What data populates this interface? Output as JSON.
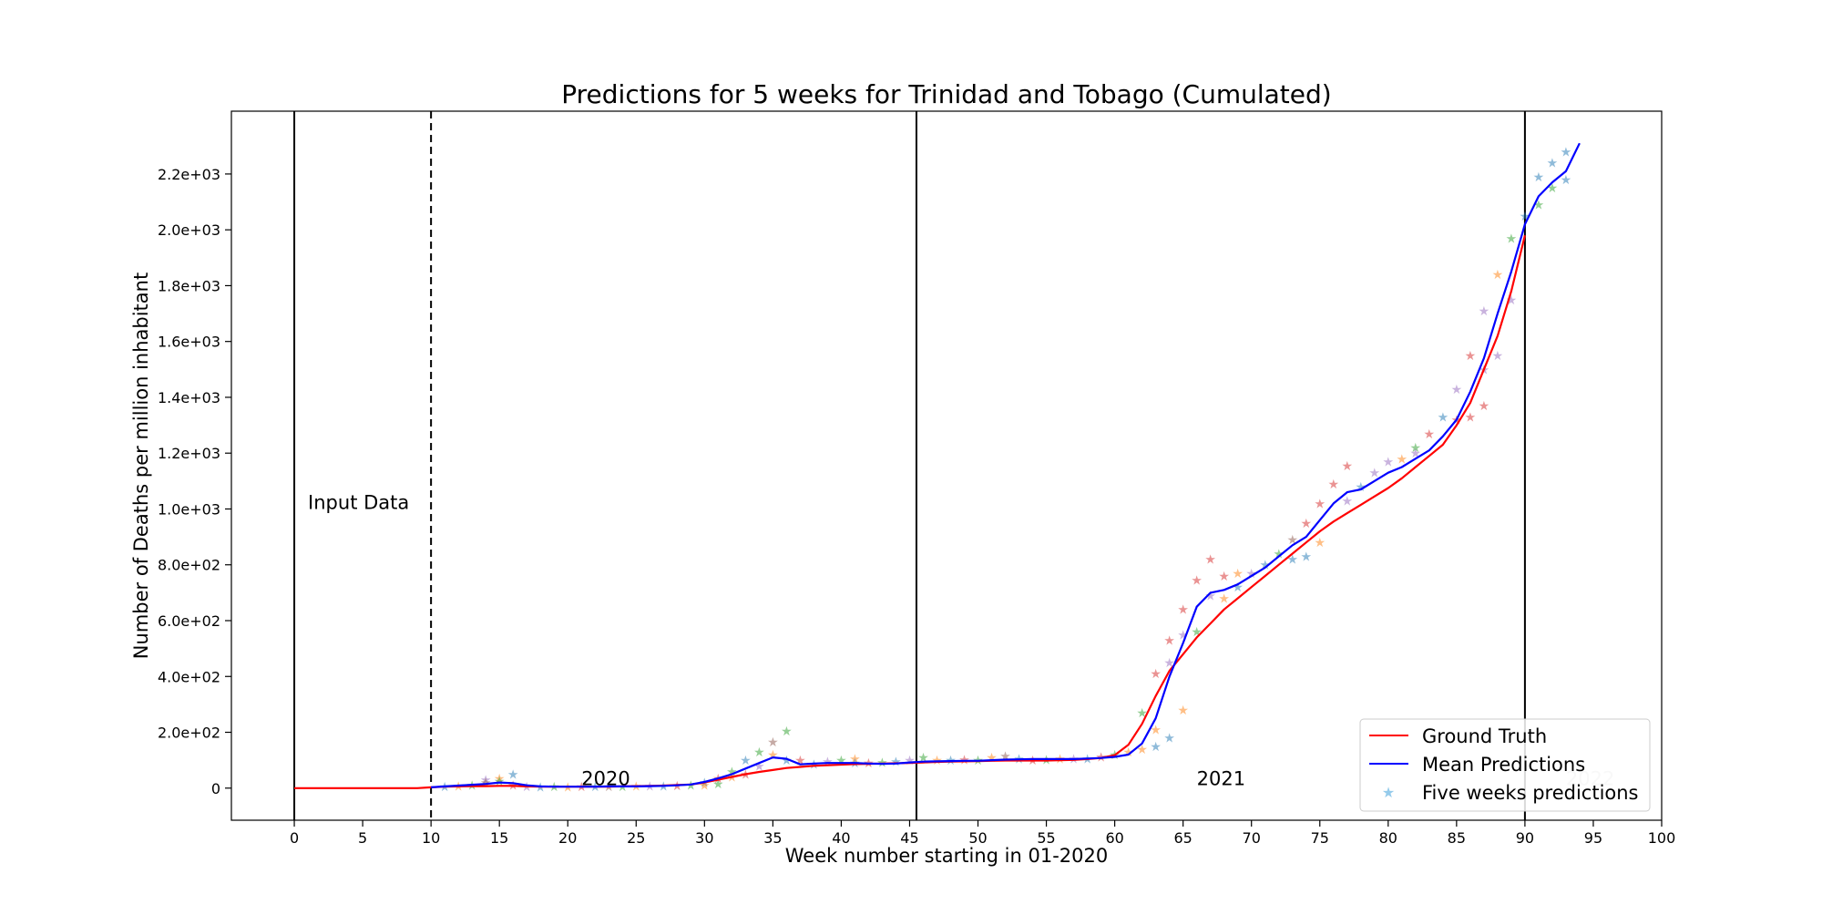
{
  "chart_data": {
    "type": "line",
    "title": "Predictions for 5 weeks for Trinidad and Tobago (Cumulated)",
    "xlabel": "Week number starting in 01-2020",
    "ylabel": "Number of Deaths per million inhabitant",
    "xlim": [
      -4.6,
      100
    ],
    "ylim": [
      -115,
      2425
    ],
    "x_ticks": [
      0,
      5,
      10,
      15,
      20,
      25,
      30,
      35,
      40,
      45,
      50,
      55,
      60,
      65,
      70,
      75,
      80,
      85,
      90,
      95,
      100
    ],
    "x_tick_labels": [
      "0",
      "5",
      "10",
      "15",
      "20",
      "25",
      "30",
      "35",
      "40",
      "45",
      "50",
      "55",
      "60",
      "65",
      "70",
      "75",
      "80",
      "85",
      "90",
      "95",
      "100"
    ],
    "y_ticks": [
      0,
      200,
      400,
      600,
      800,
      1000,
      1200,
      1400,
      1600,
      1800,
      2000,
      2200
    ],
    "y_tick_labels": [
      "0",
      "2.0e+02",
      "4.0e+02",
      "6.0e+02",
      "8.0e+02",
      "1.0e+03",
      "1.2e+03",
      "1.4e+03",
      "1.6e+03",
      "1.8e+03",
      "2.0e+03",
      "2.2e+03"
    ],
    "grid": false,
    "legend_position": "lower-right",
    "vertical_lines": [
      {
        "x": 0,
        "style": "solid",
        "color": "#000000"
      },
      {
        "x": 10,
        "style": "dashed",
        "color": "#000000"
      },
      {
        "x": 45.5,
        "style": "solid",
        "color": "#000000"
      },
      {
        "x": 90,
        "style": "solid",
        "color": "#000000"
      }
    ],
    "annotations": [
      {
        "text": "Input Data",
        "x": 1,
        "y": 1000,
        "color": "#000000"
      },
      {
        "text": "2020",
        "x": 21,
        "y": 10,
        "color": "#000000"
      },
      {
        "text": "2021",
        "x": 66,
        "y": 10,
        "color": "#000000"
      },
      {
        "text": "2022",
        "x": 93,
        "y": 10,
        "color": "#cccccc"
      }
    ],
    "series": [
      {
        "name": "Ground Truth",
        "kind": "line",
        "color": "#ff0000",
        "x": [
          0,
          2,
          4,
          6,
          8,
          9,
          10,
          11,
          12,
          13,
          14,
          15,
          16,
          17,
          18,
          19,
          20,
          21,
          22,
          23,
          24,
          25,
          26,
          27,
          28,
          29,
          30,
          31,
          32,
          33,
          34,
          35,
          36,
          37,
          38,
          39,
          40,
          41,
          42,
          43,
          44,
          45,
          46,
          47,
          48,
          49,
          50,
          51,
          52,
          53,
          54,
          55,
          56,
          57,
          58,
          59,
          60,
          61,
          62,
          63,
          64,
          65,
          66,
          67,
          68,
          69,
          70,
          71,
          72,
          73,
          74,
          75,
          76,
          77,
          78,
          79,
          80,
          81,
          82,
          83,
          84,
          85,
          86,
          87,
          88,
          89,
          90
        ],
        "values": [
          0,
          0,
          0,
          0,
          0,
          0,
          3,
          5,
          6,
          7,
          7,
          8,
          8,
          6,
          5,
          5,
          5,
          5,
          5,
          5,
          6,
          7,
          8,
          9,
          11,
          13,
          20,
          30,
          40,
          50,
          58,
          65,
          72,
          76,
          80,
          82,
          84,
          86,
          87,
          88,
          89,
          90,
          92,
          94,
          95,
          96,
          97,
          98,
          99,
          99,
          99,
          99,
          100,
          101,
          104,
          108,
          118,
          155,
          230,
          330,
          420,
          480,
          540,
          590,
          640,
          680,
          720,
          760,
          800,
          840,
          880,
          920,
          955,
          985,
          1015,
          1045,
          1075,
          1110,
          1150,
          1190,
          1230,
          1300,
          1380,
          1500,
          1620,
          1780,
          1980
        ]
      },
      {
        "name": "Mean Predictions",
        "kind": "line",
        "color": "#0000ff",
        "x": [
          10,
          11,
          12,
          13,
          14,
          15,
          16,
          17,
          18,
          19,
          20,
          21,
          22,
          23,
          24,
          25,
          26,
          27,
          28,
          29,
          30,
          31,
          32,
          33,
          34,
          35,
          36,
          37,
          38,
          39,
          40,
          41,
          42,
          43,
          44,
          45,
          46,
          47,
          48,
          49,
          50,
          51,
          52,
          53,
          54,
          55,
          56,
          57,
          58,
          59,
          60,
          61,
          62,
          63,
          64,
          65,
          66,
          67,
          68,
          69,
          70,
          71,
          72,
          73,
          74,
          75,
          76,
          77,
          78,
          79,
          80,
          81,
          82,
          83,
          84,
          85,
          86,
          87,
          88,
          89,
          90,
          91,
          92,
          93,
          94
        ],
        "values": [
          3,
          6,
          9,
          12,
          15,
          20,
          18,
          10,
          6,
          5,
          5,
          5,
          5,
          6,
          6,
          6,
          7,
          8,
          10,
          13,
          22,
          35,
          50,
          70,
          90,
          110,
          105,
          85,
          88,
          90,
          90,
          90,
          88,
          87,
          88,
          92,
          95,
          96,
          97,
          98,
          98,
          100,
          102,
          103,
          104,
          104,
          104,
          104,
          106,
          108,
          112,
          120,
          160,
          250,
          400,
          520,
          650,
          700,
          710,
          730,
          760,
          790,
          830,
          870,
          900,
          960,
          1020,
          1060,
          1070,
          1100,
          1130,
          1150,
          1180,
          1210,
          1260,
          1320,
          1420,
          1540,
          1700,
          1850,
          2020,
          2120,
          2170,
          2210,
          2310
        ]
      },
      {
        "name": "Five weeks predictions",
        "kind": "scatter",
        "color": "#4ea8de",
        "points": [
          [
            11,
            5,
            "#1f77b4"
          ],
          [
            12,
            8,
            "#ff7f0e"
          ],
          [
            13,
            10,
            "#2ca02c"
          ],
          [
            14,
            30,
            "#9467bd"
          ],
          [
            14,
            20,
            "#8c564b"
          ],
          [
            15,
            35,
            "#ff7f0e"
          ],
          [
            15,
            25,
            "#2ca02c"
          ],
          [
            16,
            50,
            "#1f77b4"
          ],
          [
            16,
            10,
            "#d62728"
          ],
          [
            17,
            5,
            "#9467bd"
          ],
          [
            18,
            4,
            "#1f77b4"
          ],
          [
            19,
            5,
            "#2ca02c"
          ],
          [
            20,
            4,
            "#ff7f0e"
          ],
          [
            21,
            5,
            "#d62728"
          ],
          [
            22,
            5,
            "#1f77b4"
          ],
          [
            23,
            6,
            "#8c564b"
          ],
          [
            24,
            6,
            "#2ca02c"
          ],
          [
            25,
            7,
            "#ff7f0e"
          ],
          [
            26,
            7,
            "#9467bd"
          ],
          [
            27,
            8,
            "#1f77b4"
          ],
          [
            28,
            9,
            "#d62728"
          ],
          [
            29,
            10,
            "#2ca02c"
          ],
          [
            30,
            20,
            "#1f77b4"
          ],
          [
            30,
            10,
            "#ff7f0e"
          ],
          [
            31,
            35,
            "#d62728"
          ],
          [
            31,
            15,
            "#2ca02c"
          ],
          [
            32,
            60,
            "#2ca02c"
          ],
          [
            32,
            40,
            "#ff7f0e"
          ],
          [
            33,
            100,
            "#1f77b4"
          ],
          [
            33,
            50,
            "#d62728"
          ],
          [
            34,
            130,
            "#2ca02c"
          ],
          [
            34,
            80,
            "#9467bd"
          ],
          [
            35,
            165,
            "#8c564b"
          ],
          [
            35,
            120,
            "#ff7f0e"
          ],
          [
            36,
            205,
            "#2ca02c"
          ],
          [
            36,
            100,
            "#1f77b4"
          ],
          [
            37,
            100,
            "#d62728"
          ],
          [
            38,
            85,
            "#1f77b4"
          ],
          [
            39,
            95,
            "#9467bd"
          ],
          [
            40,
            100,
            "#2ca02c"
          ],
          [
            41,
            105,
            "#ff7f0e"
          ],
          [
            41,
            90,
            "#1f77b4"
          ],
          [
            42,
            90,
            "#d62728"
          ],
          [
            43,
            92,
            "#2ca02c"
          ],
          [
            44,
            95,
            "#1f77b4"
          ],
          [
            45,
            100,
            "#9467bd"
          ],
          [
            46,
            110,
            "#2ca02c"
          ],
          [
            47,
            100,
            "#ff7f0e"
          ],
          [
            48,
            100,
            "#1f77b4"
          ],
          [
            49,
            102,
            "#d62728"
          ],
          [
            50,
            100,
            "#2ca02c"
          ],
          [
            51,
            110,
            "#ff7f0e"
          ],
          [
            52,
            115,
            "#8c564b"
          ],
          [
            53,
            105,
            "#1f77b4"
          ],
          [
            54,
            100,
            "#d62728"
          ],
          [
            55,
            102,
            "#2ca02c"
          ],
          [
            56,
            105,
            "#ff7f0e"
          ],
          [
            57,
            105,
            "#9467bd"
          ],
          [
            58,
            106,
            "#1f77b4"
          ],
          [
            59,
            112,
            "#d62728"
          ],
          [
            60,
            120,
            "#2ca02c"
          ],
          [
            61,
            130,
            "#ff7f0e"
          ],
          [
            62,
            270,
            "#2ca02c"
          ],
          [
            62,
            140,
            "#ff7f0e"
          ],
          [
            63,
            410,
            "#d62728"
          ],
          [
            63,
            210,
            "#ff7f0e"
          ],
          [
            63,
            150,
            "#1f77b4"
          ],
          [
            64,
            530,
            "#d62728"
          ],
          [
            64,
            450,
            "#9467bd"
          ],
          [
            64,
            180,
            "#1f77b4"
          ],
          [
            65,
            640,
            "#d62728"
          ],
          [
            65,
            550,
            "#9467bd"
          ],
          [
            65,
            280,
            "#ff7f0e"
          ],
          [
            66,
            745,
            "#d62728"
          ],
          [
            66,
            560,
            "#2ca02c"
          ],
          [
            67,
            820,
            "#d62728"
          ],
          [
            67,
            690,
            "#9467bd"
          ],
          [
            68,
            760,
            "#d62728"
          ],
          [
            68,
            680,
            "#ff7f0e"
          ],
          [
            69,
            770,
            "#ff7f0e"
          ],
          [
            69,
            720,
            "#1f77b4"
          ],
          [
            70,
            770,
            "#9467bd"
          ],
          [
            71,
            800,
            "#1f77b4"
          ],
          [
            72,
            840,
            "#2ca02c"
          ],
          [
            73,
            890,
            "#8c564b"
          ],
          [
            73,
            820,
            "#1f77b4"
          ],
          [
            74,
            950,
            "#d62728"
          ],
          [
            74,
            830,
            "#1f77b4"
          ],
          [
            75,
            1020,
            "#d62728"
          ],
          [
            75,
            880,
            "#ff7f0e"
          ],
          [
            76,
            1090,
            "#d62728"
          ],
          [
            77,
            1155,
            "#d62728"
          ],
          [
            77,
            1030,
            "#9467bd"
          ],
          [
            78,
            1080,
            "#1f77b4"
          ],
          [
            79,
            1130,
            "#9467bd"
          ],
          [
            80,
            1170,
            "#9467bd"
          ],
          [
            81,
            1180,
            "#ff7f0e"
          ],
          [
            82,
            1220,
            "#2ca02c"
          ],
          [
            82,
            1200,
            "#9467bd"
          ],
          [
            83,
            1270,
            "#d62728"
          ],
          [
            84,
            1330,
            "#1f77b4"
          ],
          [
            85,
            1320,
            "#d62728"
          ],
          [
            85,
            1430,
            "#9467bd"
          ],
          [
            86,
            1550,
            "#d62728"
          ],
          [
            86,
            1330,
            "#d62728"
          ],
          [
            87,
            1710,
            "#9467bd"
          ],
          [
            87,
            1370,
            "#d62728"
          ],
          [
            87,
            1500,
            "#9467bd"
          ],
          [
            88,
            1840,
            "#ff7f0e"
          ],
          [
            88,
            1550,
            "#9467bd"
          ],
          [
            89,
            1970,
            "#2ca02c"
          ],
          [
            89,
            1750,
            "#9467bd"
          ],
          [
            90,
            2050,
            "#1f77b4"
          ],
          [
            91,
            2190,
            "#1f77b4"
          ],
          [
            91,
            2090,
            "#2ca02c"
          ],
          [
            92,
            2240,
            "#1f77b4"
          ],
          [
            92,
            2150,
            "#2ca02c"
          ],
          [
            93,
            2180,
            "#1f77b4"
          ],
          [
            93,
            2280,
            "#1f77b4"
          ]
        ]
      }
    ]
  }
}
